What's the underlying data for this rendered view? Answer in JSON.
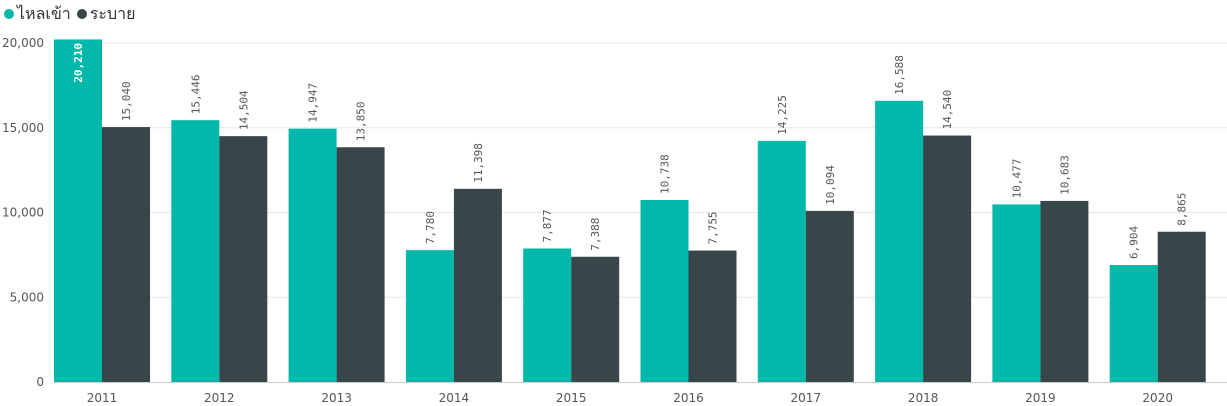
{
  "chart_data": {
    "type": "bar",
    "title": "",
    "xlabel": "",
    "ylabel": "",
    "categories": [
      "2011",
      "2012",
      "2013",
      "2014",
      "2015",
      "2016",
      "2017",
      "2018",
      "2019",
      "2020"
    ],
    "series": [
      {
        "name": "ไหลเข้า",
        "color": "#01B8AA",
        "values": [
          20210,
          15446,
          14947,
          7780,
          7877,
          10738,
          14225,
          16588,
          10477,
          6904
        ],
        "labels": [
          "20,210",
          "15,446",
          "14,947",
          "7,780",
          "7,877",
          "10,738",
          "14,225",
          "16,588",
          "10,477",
          "6,904"
        ]
      },
      {
        "name": "ระบาย",
        "color": "#374649",
        "values": [
          15040,
          14504,
          13850,
          11398,
          7388,
          7755,
          10094,
          14540,
          10683,
          8865
        ],
        "labels": [
          "15,040",
          "14,504",
          "13,850",
          "11,398",
          "7,388",
          "7,755",
          "10,094",
          "14,540",
          "10,683",
          "8,865"
        ]
      }
    ],
    "ylim": [
      0,
      20000
    ],
    "yticks": [
      0,
      5000,
      10000,
      15000,
      20000
    ],
    "ytick_labels": [
      "0",
      "5,000",
      "10,000",
      "15,000",
      "20,000"
    ],
    "grid": true,
    "legend_position": "top-left"
  }
}
